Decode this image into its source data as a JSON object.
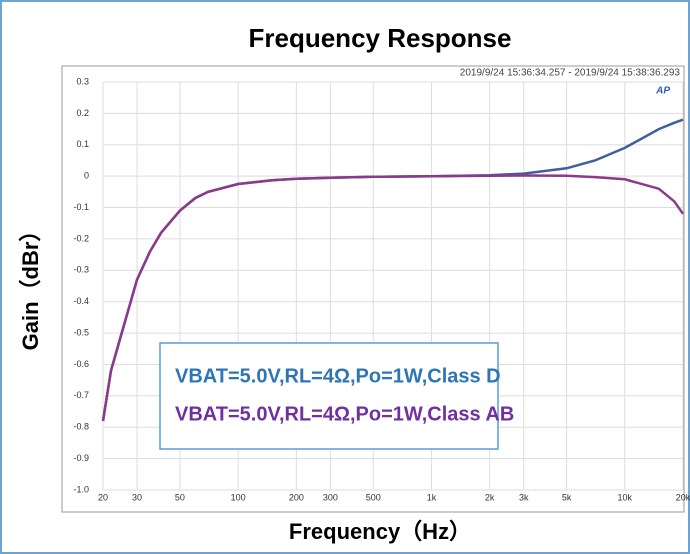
{
  "chart_data": {
    "type": "line",
    "title": "Frequency Response",
    "x_label": "Frequency（Hz）",
    "y_label": "Gain（dBr）",
    "annotation": "2019/9/24 15:36:34.257 - 2019/9/24 15:38:36.293",
    "logo": "AP",
    "x": [
      20,
      22,
      25,
      30,
      35,
      40,
      50,
      60,
      70,
      100,
      150,
      200,
      300,
      500,
      1000,
      2000,
      3000,
      5000,
      7000,
      10000,
      15000,
      18000,
      20000
    ],
    "series": [
      {
        "name": "VBAT=5.0V,RL=4Ω,Po=1W,Class D",
        "color": "#3f5f9e",
        "legend_color": "#2e75b6",
        "values": [
          -0.78,
          -0.62,
          -0.5,
          -0.33,
          -0.24,
          -0.18,
          -0.11,
          -0.07,
          -0.05,
          -0.025,
          -0.013,
          -0.008,
          -0.005,
          -0.002,
          0,
          0.003,
          0.008,
          0.025,
          0.05,
          0.09,
          0.15,
          0.17,
          0.18
        ]
      },
      {
        "name": "VBAT=5.0V,RL=4Ω,Po=1W,Class AB",
        "color": "#8b3a8b",
        "legend_color": "#7030a0",
        "values": [
          -0.78,
          -0.62,
          -0.5,
          -0.33,
          -0.24,
          -0.18,
          -0.11,
          -0.07,
          -0.05,
          -0.025,
          -0.013,
          -0.008,
          -0.005,
          -0.002,
          0,
          0.001,
          0.002,
          0.001,
          -0.003,
          -0.01,
          -0.04,
          -0.08,
          -0.12
        ]
      }
    ],
    "xlim": [
      20,
      20000
    ],
    "xscale": "log",
    "xticks": [
      20,
      30,
      50,
      100,
      200,
      300,
      500,
      {
        "value": 1000,
        "label": "1k"
      },
      {
        "value": 2000,
        "label": "2k"
      },
      {
        "value": 3000,
        "label": "3k"
      },
      {
        "value": 5000,
        "label": "5k"
      },
      {
        "value": 10000,
        "label": "10k"
      },
      {
        "value": 20000,
        "label": "20k"
      }
    ],
    "ylim": [
      -1,
      0.3
    ],
    "yticks": [
      0.3,
      0.2,
      0.1,
      0,
      -0.1,
      -0.2,
      -0.3,
      -0.4,
      -0.5,
      -0.6,
      -0.7,
      -0.8,
      -0.9,
      {
        "value": -1,
        "label": "-1.0"
      }
    ],
    "grid": true
  }
}
